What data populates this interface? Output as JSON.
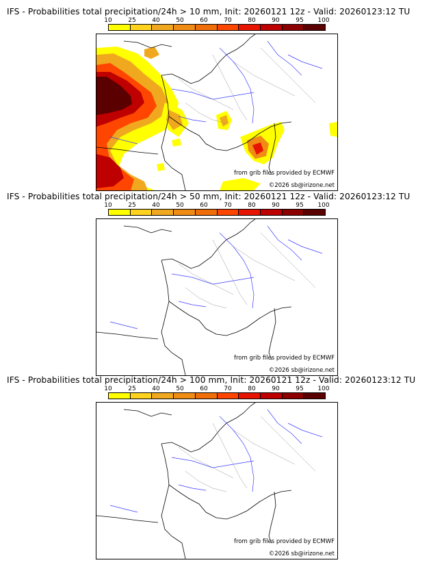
{
  "colorbar": {
    "ticks": [
      "10",
      "25",
      "40",
      "50",
      "60",
      "70",
      "80",
      "90",
      "95",
      "100"
    ],
    "colors": [
      "#ffff00",
      "#ffd21e",
      "#f0a91e",
      "#f08c14",
      "#f06e0a",
      "#ff4600",
      "#e61400",
      "#be0000",
      "#8c0000",
      "#5a0000"
    ]
  },
  "credits": {
    "source": "from grib files provided by ECMWF",
    "copyright": "©2026 sb@irizone.net"
  },
  "panels": [
    {
      "title": "IFS - Probabilities total precipitation/24h > 10 mm, Init: 20260121 12z - Valid: 20260123:12 TU"
    },
    {
      "title": "IFS - Probabilities total precipitation/24h > 50 mm, Init: 20260121 12z - Valid: 20260123:12 TU"
    },
    {
      "title": "IFS - Probabilities total precipitation/24h > 100 mm, Init: 20260121 12z - Valid: 20260123:12 TU"
    }
  ]
}
